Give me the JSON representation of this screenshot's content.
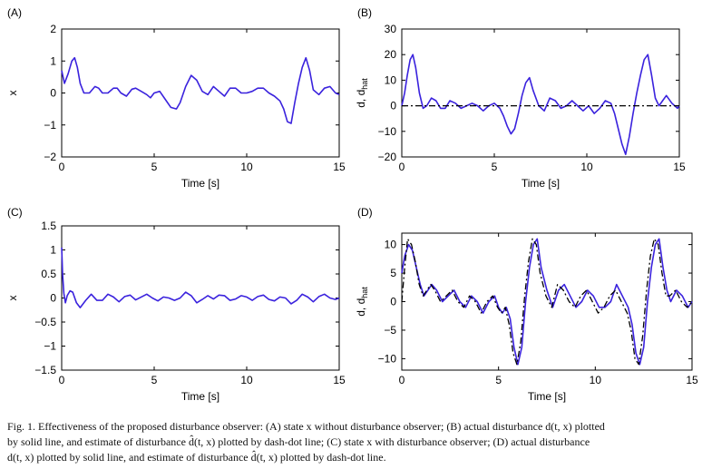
{
  "colors": {
    "solid": "#3a22dd",
    "estimate": "#000000",
    "axis": "#000000"
  },
  "chart_data": [
    {
      "id": "A",
      "type": "line",
      "panel_label": "(A)",
      "xlabel": "Time [s]",
      "ylabel": "x",
      "xlim": [
        0,
        15
      ],
      "ylim": [
        -2,
        2
      ],
      "xticks": [
        0,
        5,
        10,
        15
      ],
      "yticks": [
        -2,
        -1,
        0,
        1,
        2
      ],
      "grid": false,
      "series": [
        {
          "style": "solid",
          "x": [
            0,
            0.15,
            0.35,
            0.55,
            0.7,
            0.85,
            1.0,
            1.2,
            1.5,
            1.8,
            2.0,
            2.2,
            2.5,
            2.8,
            3.0,
            3.2,
            3.5,
            3.8,
            4.0,
            4.3,
            4.6,
            4.8,
            5.0,
            5.3,
            5.6,
            5.9,
            6.2,
            6.4,
            6.7,
            7.0,
            7.3,
            7.6,
            7.9,
            8.2,
            8.5,
            8.8,
            9.1,
            9.4,
            9.7,
            10.0,
            10.3,
            10.6,
            10.9,
            11.2,
            11.5,
            11.8,
            12.0,
            12.2,
            12.4,
            12.6,
            12.8,
            13.0,
            13.2,
            13.4,
            13.6,
            13.9,
            14.2,
            14.5,
            14.8,
            15.0
          ],
          "y": [
            0.7,
            0.3,
            0.6,
            1.0,
            1.1,
            0.8,
            0.3,
            0.0,
            0.0,
            0.2,
            0.15,
            0.0,
            0.0,
            0.15,
            0.15,
            0.0,
            -0.1,
            0.12,
            0.15,
            0.05,
            -0.05,
            -0.15,
            0.0,
            0.05,
            -0.2,
            -0.45,
            -0.5,
            -0.3,
            0.2,
            0.55,
            0.4,
            0.05,
            -0.05,
            0.2,
            0.05,
            -0.1,
            0.15,
            0.15,
            0.0,
            0.0,
            0.05,
            0.15,
            0.15,
            0.0,
            -0.1,
            -0.25,
            -0.5,
            -0.9,
            -0.95,
            -0.3,
            0.3,
            0.8,
            1.1,
            0.7,
            0.1,
            -0.05,
            0.15,
            0.2,
            0.0,
            -0.05
          ]
        }
      ]
    },
    {
      "id": "B",
      "type": "line",
      "panel_label": "(B)",
      "xlabel": "Time [s]",
      "ylabel": "d, d",
      "ylabel_sub": "hat",
      "xlim": [
        0,
        15
      ],
      "ylim": [
        -20,
        30
      ],
      "xticks": [
        0,
        5,
        10,
        15
      ],
      "yticks": [
        -20,
        -10,
        0,
        10,
        20,
        30
      ],
      "grid": false,
      "series": [
        {
          "style": "solid",
          "x": [
            0,
            0.15,
            0.3,
            0.45,
            0.6,
            0.75,
            0.95,
            1.15,
            1.35,
            1.6,
            1.85,
            2.1,
            2.35,
            2.6,
            2.9,
            3.2,
            3.5,
            3.8,
            4.1,
            4.4,
            4.7,
            5.0,
            5.3,
            5.5,
            5.7,
            5.9,
            6.1,
            6.3,
            6.5,
            6.7,
            6.9,
            7.1,
            7.4,
            7.7,
            8.0,
            8.3,
            8.6,
            8.9,
            9.2,
            9.5,
            9.8,
            10.1,
            10.4,
            10.7,
            11.0,
            11.3,
            11.5,
            11.7,
            11.9,
            12.1,
            12.3,
            12.5,
            12.7,
            12.9,
            13.1,
            13.3,
            13.5,
            13.7,
            13.9,
            14.1,
            14.3,
            14.6,
            14.9,
            15.0
          ],
          "y": [
            0,
            5,
            12,
            18,
            20,
            15,
            5,
            -1,
            0,
            3,
            2,
            -1,
            -1,
            2,
            1,
            -1,
            0,
            1,
            0,
            -2,
            0,
            1,
            -1,
            -4,
            -8,
            -11,
            -9,
            -3,
            4,
            9,
            11,
            6,
            0,
            -2,
            3,
            2,
            -1,
            0,
            2,
            0,
            -2,
            0,
            -3,
            -1,
            2,
            1,
            -3,
            -9,
            -15,
            -19,
            -12,
            -3,
            5,
            12,
            18,
            20,
            12,
            3,
            0,
            2,
            4,
            1,
            -1,
            0
          ]
        },
        {
          "style": "dashdot",
          "x": [
            0,
            15
          ],
          "y": [
            0,
            0
          ]
        }
      ]
    },
    {
      "id": "C",
      "type": "line",
      "panel_label": "(C)",
      "xlabel": "Time [s]",
      "ylabel": "x",
      "xlim": [
        0,
        15
      ],
      "ylim": [
        -1.5,
        1.5
      ],
      "xticks": [
        0,
        5,
        10,
        15
      ],
      "yticks": [
        -1.5,
        -1,
        -0.5,
        0,
        0.5,
        1,
        1.5
      ],
      "grid": false,
      "series": [
        {
          "style": "solid",
          "x": [
            0,
            0.05,
            0.12,
            0.2,
            0.3,
            0.45,
            0.6,
            0.8,
            1.0,
            1.3,
            1.6,
            1.9,
            2.2,
            2.5,
            2.8,
            3.1,
            3.4,
            3.7,
            4.0,
            4.3,
            4.6,
            4.9,
            5.2,
            5.5,
            5.8,
            6.1,
            6.4,
            6.7,
            7.0,
            7.3,
            7.6,
            7.9,
            8.2,
            8.5,
            8.8,
            9.1,
            9.4,
            9.7,
            10.0,
            10.3,
            10.6,
            10.9,
            11.2,
            11.5,
            11.8,
            12.1,
            12.4,
            12.7,
            13.0,
            13.3,
            13.6,
            13.9,
            14.2,
            14.5,
            14.8,
            15.0
          ],
          "y": [
            1.05,
            0.5,
            0.1,
            -0.1,
            0.05,
            0.15,
            0.12,
            -0.1,
            -0.2,
            -0.05,
            0.08,
            -0.05,
            -0.05,
            0.08,
            0.02,
            -0.08,
            0.03,
            0.06,
            -0.04,
            0.02,
            0.08,
            0.0,
            -0.06,
            0.02,
            0.0,
            -0.05,
            0.0,
            0.12,
            0.05,
            -0.1,
            -0.03,
            0.05,
            -0.02,
            0.06,
            0.05,
            -0.05,
            -0.02,
            0.05,
            0.02,
            -0.05,
            0.03,
            0.06,
            -0.03,
            -0.06,
            0.02,
            0.0,
            -0.12,
            -0.05,
            0.08,
            0.02,
            -0.08,
            0.03,
            0.08,
            0.0,
            -0.03,
            0.0
          ]
        }
      ]
    },
    {
      "id": "D",
      "type": "line",
      "panel_label": "(D)",
      "xlabel": "Time [s]",
      "ylabel": "d, d",
      "ylabel_sub": "hat",
      "xlim": [
        0,
        15
      ],
      "ylim": [
        -12,
        12
      ],
      "xticks": [
        0,
        5,
        10,
        15
      ],
      "yticks": [
        -10,
        -5,
        0,
        5,
        10
      ],
      "grid": false,
      "series": [
        {
          "style": "solid",
          "x": [
            0,
            0.15,
            0.35,
            0.55,
            0.75,
            0.95,
            1.15,
            1.35,
            1.55,
            1.8,
            2.1,
            2.4,
            2.7,
            3.0,
            3.3,
            3.6,
            3.9,
            4.2,
            4.5,
            4.8,
            5.0,
            5.2,
            5.4,
            5.6,
            5.8,
            6.0,
            6.2,
            6.4,
            6.6,
            6.8,
            7.0,
            7.2,
            7.5,
            7.8,
            8.1,
            8.4,
            8.7,
            9.0,
            9.3,
            9.6,
            9.9,
            10.2,
            10.5,
            10.8,
            11.1,
            11.4,
            11.7,
            11.9,
            12.1,
            12.3,
            12.5,
            12.7,
            12.9,
            13.1,
            13.3,
            13.5,
            13.7,
            13.9,
            14.2,
            14.5,
            14.8,
            15.0
          ],
          "y": [
            5,
            8,
            10,
            9,
            6,
            3,
            1,
            2,
            3,
            2,
            0,
            1,
            2,
            0,
            -1,
            1,
            0,
            -2,
            0,
            1,
            -1,
            -2,
            -1,
            -3,
            -8,
            -11,
            -8,
            0,
            6,
            10,
            11,
            6,
            2,
            -1,
            2,
            3,
            1,
            -1,
            0,
            2,
            1,
            -1,
            -1,
            0,
            3,
            1,
            -1,
            -4,
            -9,
            -11,
            -8,
            0,
            6,
            10,
            11,
            6,
            2,
            0,
            2,
            1,
            -1,
            0
          ]
        },
        {
          "style": "dashdot",
          "x": [
            0,
            0.15,
            0.3,
            0.5,
            0.7,
            0.9,
            1.1,
            1.3,
            1.5,
            1.7,
            2.0,
            2.3,
            2.6,
            2.9,
            3.2,
            3.5,
            3.8,
            4.1,
            4.4,
            4.7,
            4.95,
            5.15,
            5.35,
            5.55,
            5.75,
            5.95,
            6.15,
            6.35,
            6.55,
            6.75,
            6.95,
            7.15,
            7.45,
            7.75,
            8.05,
            8.35,
            8.65,
            8.95,
            9.25,
            9.55,
            9.85,
            10.15,
            10.45,
            10.75,
            11.05,
            11.35,
            11.65,
            11.85,
            12.05,
            12.25,
            12.45,
            12.65,
            12.85,
            13.05,
            13.25,
            13.45,
            13.65,
            13.85,
            14.15,
            14.45,
            14.75,
            15.0
          ],
          "y": [
            0,
            6,
            11,
            10,
            7,
            3,
            1,
            2,
            3,
            2,
            0,
            1,
            2,
            0,
            -1,
            1,
            0,
            -2,
            0,
            1,
            -1,
            -2,
            -1,
            -4,
            -9,
            -11,
            -7,
            1,
            7,
            11,
            10,
            5,
            1,
            -1,
            3,
            2,
            0,
            -1,
            1,
            2,
            0,
            -2,
            -1,
            1,
            2,
            0,
            -2,
            -5,
            -10,
            -11,
            -6,
            2,
            8,
            11,
            10,
            5,
            1,
            1,
            2,
            0,
            -1,
            0
          ]
        }
      ]
    }
  ],
  "caption": {
    "line1": "Fig. 1.  Effectiveness of the proposed disturbance observer: (A) state x without disturbance observer; (B) actual disturbance d(t, x) plotted",
    "line2": "by solid line, and estimate of disturbance d̂(t, x) plotted by dash-dot line; (C) state x with disturbance observer; (D) actual disturbance",
    "line3": "d(t, x) plotted by solid line, and estimate of disturbance d̂(t, x) plotted by dash-dot line."
  }
}
